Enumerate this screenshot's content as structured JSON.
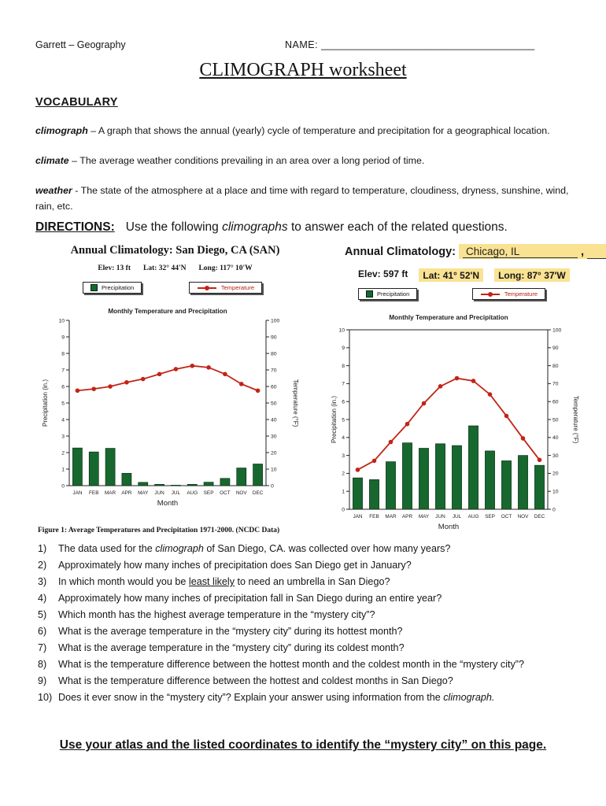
{
  "header": {
    "left": "Garrett – Geography",
    "name_label": "NAME:",
    "name_blank": "_______________________________________"
  },
  "title": "CLIMOGRAPH worksheet",
  "vocabulary": {
    "heading": "VOCABULARY",
    "terms": [
      {
        "term": "climograph",
        "sep": " – ",
        "definition": "A graph that shows the annual (yearly) cycle of temperature and precipitation for a geographical location."
      },
      {
        "term": "climate",
        "sep": " – ",
        "definition": "The average weather conditions prevailing in an area over a long period of time."
      },
      {
        "term": "weather",
        "sep": " - ",
        "definition": "The state of the atmosphere at a place and time with regard to temperature, cloudiness, dryness, sunshine, wind, rain, etc."
      }
    ]
  },
  "directions": {
    "label": "DIRECTIONS:",
    "text_before": "Use the following ",
    "italic_word": "climographs",
    "text_after": " to answer each of the related questions."
  },
  "chart_data": [
    {
      "id": "san_diego",
      "type": "bar+line",
      "header_title": "Annual Climatology: San Diego, CA (SAN)",
      "meta": {
        "elev": "Elev: 13 ft",
        "lat": "Lat: 32° 44'N",
        "long": "Long: 117° 10'W"
      },
      "legend": {
        "precipitation": "Precipitation",
        "temperature": "Temperature"
      },
      "title": "Monthly Temperature and Precipitation",
      "categories": [
        "JAN",
        "FEB",
        "MAR",
        "APR",
        "MAY",
        "JUN",
        "JUL",
        "AUG",
        "SEP",
        "OCT",
        "NOV",
        "DEC"
      ],
      "series": [
        {
          "name": "Precipitation",
          "type": "bar",
          "axis": "left",
          "color": "#17682e",
          "values": [
            2.28,
            2.04,
            2.26,
            0.75,
            0.2,
            0.08,
            0.03,
            0.08,
            0.21,
            0.44,
            1.07,
            1.31
          ]
        },
        {
          "name": "Temperature",
          "type": "line",
          "axis": "right",
          "color": "#c32317",
          "values": [
            57.5,
            58.5,
            60,
            62.5,
            64.5,
            67.5,
            70.5,
            72.5,
            71.5,
            67.5,
            61.5,
            57.5
          ]
        }
      ],
      "xlabel": "Month",
      "ylabel_left": "Precipitation (in.)",
      "ylabel_right": "Temperature (°F)",
      "ylim_left": [
        0,
        10
      ],
      "ylim_right": [
        0,
        100
      ],
      "grid": false,
      "box": false
    },
    {
      "id": "chicago",
      "type": "bar+line",
      "header_label": "Annual Climatology:",
      "city_value": "Chicago, IL",
      "city_comma": " , ",
      "meta": {
        "elev": "Elev: 597 ft",
        "lat": "Lat: 41° 52'N",
        "long": "Long: 87° 37'W"
      },
      "legend": {
        "precipitation": "Precipitation",
        "temperature": "Temperature"
      },
      "title": "Monthly Temperature and Precipitation",
      "categories": [
        "JAN",
        "FEB",
        "MAR",
        "APR",
        "MAY",
        "JUN",
        "JUL",
        "AUG",
        "SEP",
        "OCT",
        "NOV",
        "DEC"
      ],
      "series": [
        {
          "name": "Precipitation",
          "type": "bar",
          "axis": "left",
          "color": "#17682e",
          "values": [
            1.75,
            1.65,
            2.65,
            3.7,
            3.4,
            3.65,
            3.55,
            4.65,
            3.25,
            2.7,
            3.0,
            2.45
          ]
        },
        {
          "name": "Temperature",
          "type": "line",
          "axis": "right",
          "color": "#c32317",
          "values": [
            22,
            27,
            37.5,
            47.5,
            59,
            68.5,
            73,
            71.5,
            64,
            52,
            39.5,
            27.5
          ]
        }
      ],
      "xlabel": "Month",
      "ylabel_left": "Precipitation (in.)",
      "ylabel_right": "Temperature (°F)",
      "ylim_left": [
        0,
        10
      ],
      "ylim_right": [
        0,
        100
      ],
      "grid": false,
      "box": true
    }
  ],
  "figure_caption": "Figure 1: Average Temperatures and Precipitation 1971-2000. (NCDC Data)",
  "questions": [
    [
      {
        "t": "The data used for the ",
        "s": "p"
      },
      {
        "t": "climograph",
        "s": "i"
      },
      {
        "t": " of San Diego, CA. was collected over how many years?",
        "s": "p"
      }
    ],
    [
      {
        "t": "Approximately how many inches of precipitation does San Diego get in January?",
        "s": "p"
      }
    ],
    [
      {
        "t": "In which month would you be ",
        "s": "p"
      },
      {
        "t": "least likely",
        "s": "u"
      },
      {
        "t": " to need an umbrella in San Diego?",
        "s": "p"
      }
    ],
    [
      {
        "t": "Approximately how many inches of precipitation fall in San Diego during an entire year?",
        "s": "p"
      }
    ],
    [
      {
        "t": "Which month has the highest average temperature in the “mystery city”?",
        "s": "p"
      }
    ],
    [
      {
        "t": "What is the average temperature in the “mystery city” during its hottest month?",
        "s": "p"
      }
    ],
    [
      {
        "t": "What is the average temperature in the “mystery city” during its coldest month?",
        "s": "p"
      }
    ],
    [
      {
        "t": "What is the temperature difference between the hottest month and the coldest month in the “mystery city”?",
        "s": "p"
      }
    ],
    [
      {
        "t": "What is the temperature difference between the hottest and coldest months in San Diego?",
        "s": "p"
      }
    ],
    [
      {
        "t": "Does it ever snow in the “mystery city”?  Explain your answer using information from the ",
        "s": "p"
      },
      {
        "t": "climograph.",
        "s": "i"
      }
    ]
  ],
  "footer": "Use your atlas and the listed coordinates to identify the “mystery city” on this page.",
  "colors": {
    "bar_green": "#17682e",
    "line_red": "#c32317",
    "highlight_yellow": "#f9e292",
    "legend_temp_text": "#b51f14"
  }
}
